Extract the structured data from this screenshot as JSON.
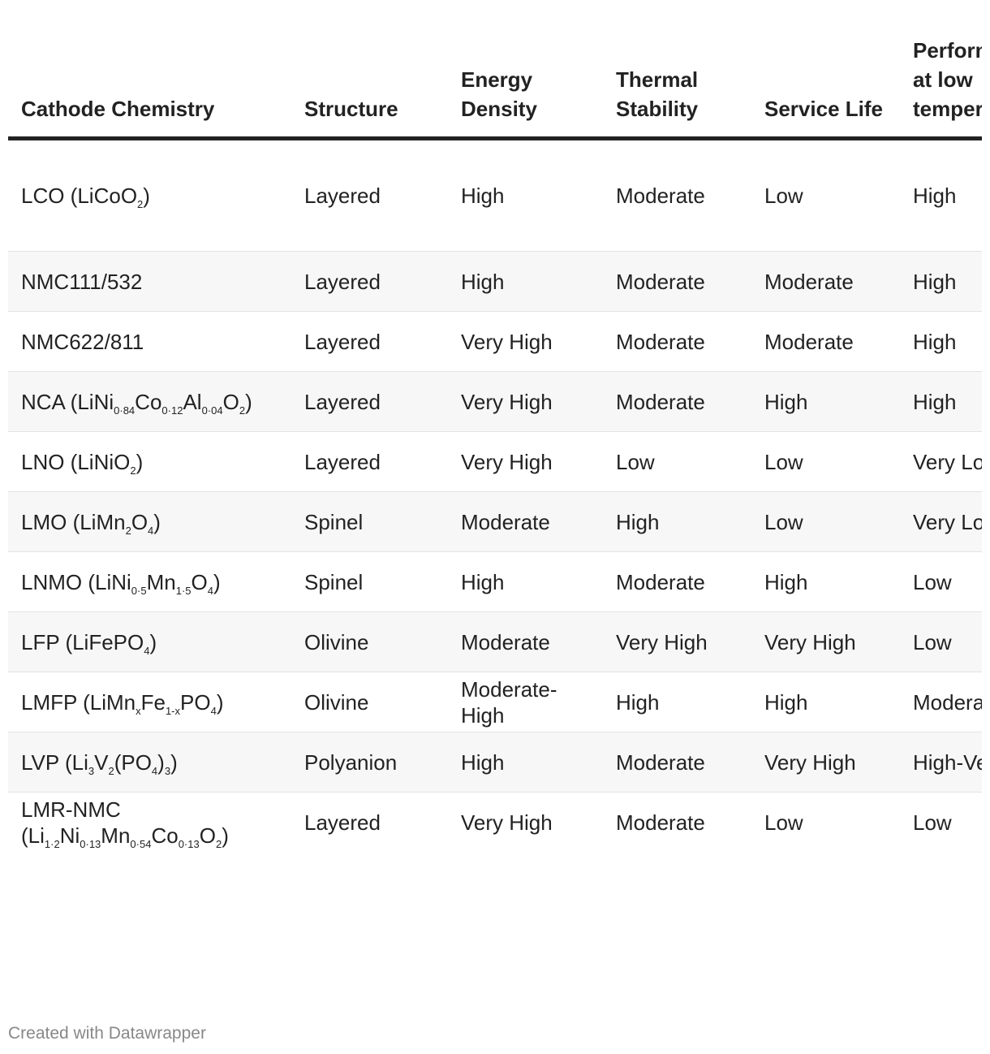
{
  "header": {
    "columns": [
      "Cathode Chemistry",
      "Structure",
      "Energy Density",
      "Thermal Stability",
      "Service Life",
      "Performance at low temperature"
    ]
  },
  "table": {
    "rows": [
      [
        [
          "LCO (LiCoO",
          "2",
          ")"
        ],
        "Layered",
        "High",
        "Moderate",
        "Low",
        "High"
      ],
      [
        [
          "NMC111/532"
        ],
        "Layered",
        "High",
        "Moderate",
        "Moderate",
        "High"
      ],
      [
        [
          "NMC622/811"
        ],
        "Layered",
        "Very High",
        "Moderate",
        "Moderate",
        "High"
      ],
      [
        [
          "NCA (LiNi",
          "0·84",
          "Co",
          "0·12",
          "Al",
          "0·04",
          "O",
          "2",
          ")"
        ],
        "Layered",
        "Very High",
        "Moderate",
        "High",
        "High"
      ],
      [
        [
          "LNO (LiNiO",
          "2",
          ")"
        ],
        "Layered",
        "Very High",
        "Low",
        "Low",
        "Very Low"
      ],
      [
        [
          "LMO (LiMn",
          "2",
          "O",
          "4",
          ")"
        ],
        "Spinel",
        "Moderate",
        "High",
        "Low",
        "Very Low"
      ],
      [
        [
          "LNMO (LiNi",
          "0·5",
          "Mn",
          "1·5",
          "O",
          "4",
          ")"
        ],
        "Spinel",
        "High",
        "Moderate",
        "High",
        "Low"
      ],
      [
        [
          "LFP (LiFePO",
          "4",
          ")"
        ],
        "Olivine",
        "Moderate",
        "Very High",
        "Very High",
        "Low"
      ],
      [
        [
          "LMFP (LiMn",
          "x",
          "Fe",
          "1-x",
          "PO",
          "4",
          ")"
        ],
        "Olivine",
        "Moderate-High",
        "High",
        "High",
        "Moderate"
      ],
      [
        [
          "LVP (Li",
          "3",
          "V",
          "2",
          "(PO",
          "4",
          ")",
          "3",
          ")"
        ],
        "Polyanion",
        "High",
        "Moderate",
        "Very High",
        "High-Very high"
      ],
      [
        [
          "LMR-NMC (Li",
          "1·2",
          "Ni",
          "0·13",
          "Mn",
          "0·54",
          "Co",
          "0·13",
          "O",
          "2",
          ")"
        ],
        "Layered",
        "Very High",
        "Moderate",
        "Low",
        "Low"
      ]
    ]
  },
  "footer": "Created with Datawrapper"
}
